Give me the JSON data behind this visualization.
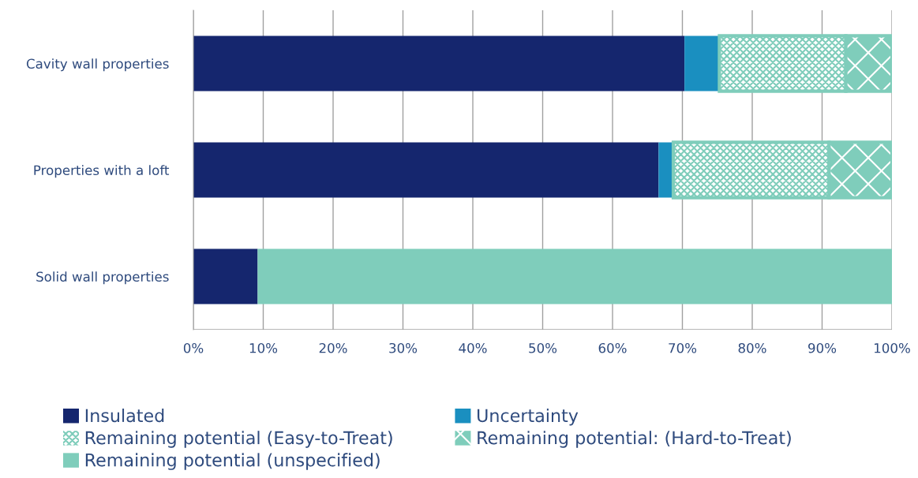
{
  "chart_data": {
    "type": "bar",
    "orientation": "horizontal",
    "stacked": true,
    "categories": [
      "Cavity wall properties",
      "Properties with a loft",
      "Solid wall properties"
    ],
    "series": [
      {
        "name": "Insulated",
        "color": "#15266e",
        "values": [
          70.3,
          66.6,
          9.2
        ]
      },
      {
        "name": "Uncertainty",
        "color": "#1a8fc0",
        "values": [
          5.0,
          2.1,
          null
        ]
      },
      {
        "name": "Remaining potential (Easy-to-Treat)",
        "color": "#7fcdbb",
        "values": [
          18.1,
          22.3,
          null
        ]
      },
      {
        "name": "Remaining potential: (Hard-to-Treat)",
        "color": "#7fcdbb",
        "values": [
          6.6,
          9.0,
          null
        ]
      },
      {
        "name": "Remaining potential (unspecified)",
        "color": "#7fcdbb",
        "values": [
          null,
          null,
          90.8
        ]
      }
    ],
    "xlim": [
      0,
      100
    ],
    "xticks": [
      {
        "value": 0,
        "label": "0%"
      },
      {
        "value": 10,
        "label": "10%"
      },
      {
        "value": 20,
        "label": "20%"
      },
      {
        "value": 30,
        "label": "30%"
      },
      {
        "value": 40,
        "label": "40%"
      },
      {
        "value": 50,
        "label": "50%"
      },
      {
        "value": 60,
        "label": "60%"
      },
      {
        "value": 70,
        "label": "70%"
      },
      {
        "value": 80,
        "label": "80%"
      },
      {
        "value": 90,
        "label": "90%"
      },
      {
        "value": 100,
        "label": "100%"
      }
    ],
    "grid": "x",
    "legend": "bottom"
  }
}
